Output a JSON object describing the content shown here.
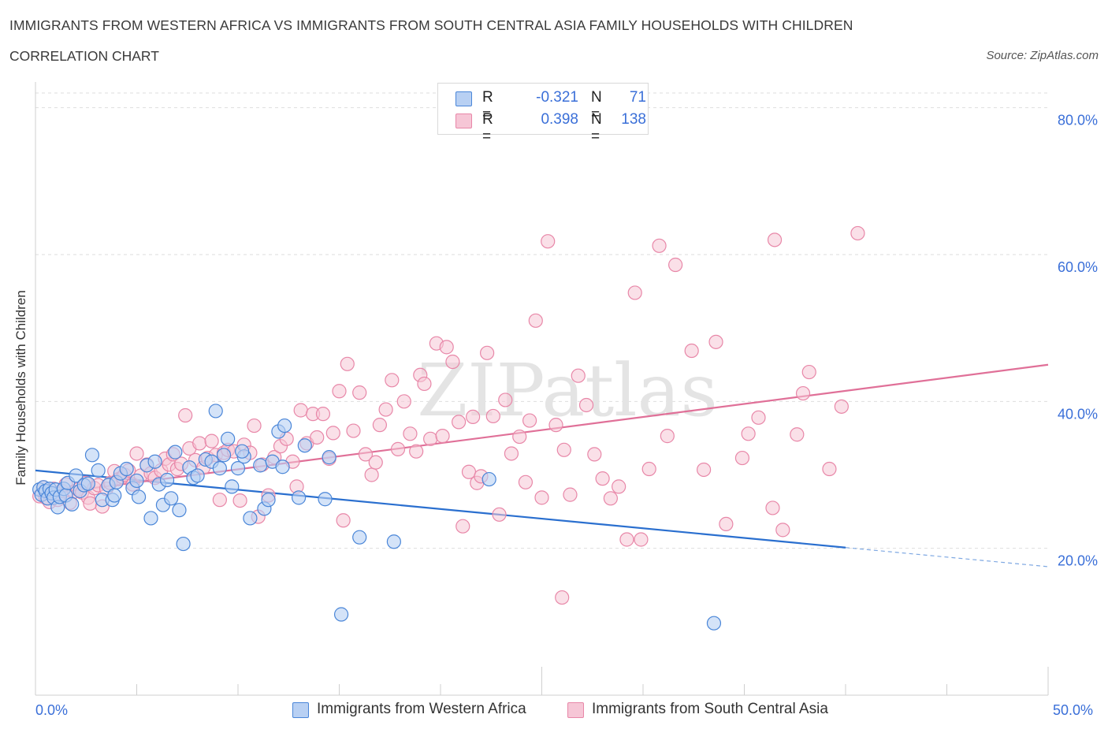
{
  "title": "IMMIGRANTS FROM WESTERN AFRICA VS IMMIGRANTS FROM SOUTH CENTRAL ASIA FAMILY HOUSEHOLDS WITH CHILDREN",
  "subtitle": "CORRELATION CHART",
  "source": "Source: ZipAtlas.com",
  "watermark": "ZIPatlas",
  "colors": {
    "blue": "#4a86d8",
    "blue_fill": "#b8d0f3",
    "blue_line": "#2a6fcf",
    "pink": "#e887a8",
    "pink_fill": "#f6c6d6",
    "pink_line": "#e07098",
    "axis_label": "#3a6fd8",
    "grid": "#dedede"
  },
  "legend": {
    "rows": [
      {
        "r_label": "R =",
        "r_value": "-0.321",
        "n_label": "N =",
        "n_value": "71",
        "color": "blue"
      },
      {
        "r_label": "R =",
        "r_value": "0.398",
        "n_label": "N =",
        "n_value": "138",
        "color": "pink"
      }
    ]
  },
  "chart_data": {
    "type": "scatter",
    "title": "IMMIGRANTS FROM WESTERN AFRICA VS IMMIGRANTS FROM SOUTH CENTRAL ASIA FAMILY HOUSEHOLDS WITH CHILDREN",
    "subtitle": "CORRELATION CHART",
    "xlabel": "",
    "ylabel": "Family Households with Children",
    "xlim": [
      0,
      50
    ],
    "ylim": [
      0,
      80
    ],
    "x_tick_labels": [
      "0.0%",
      "50.0%"
    ],
    "y_tick_labels": [
      "80.0%",
      "60.0%",
      "40.0%",
      "20.0%"
    ],
    "y_ticks": [
      80,
      60,
      40,
      20
    ],
    "grid": true,
    "legend_position": "top-center",
    "series": [
      {
        "name": "Immigrants from Western Africa",
        "color": "blue",
        "R": -0.321,
        "N": 71,
        "trend": {
          "x0": 0,
          "y0": 30.6,
          "x1": 40,
          "y1": 20.1,
          "dashed_to_x": 50,
          "dashed_to_y": 17.5
        },
        "points": [
          [
            0.2,
            28.0
          ],
          [
            0.3,
            27.3
          ],
          [
            0.4,
            28.3
          ],
          [
            0.5,
            27.8
          ],
          [
            0.6,
            26.8
          ],
          [
            0.7,
            28.1
          ],
          [
            0.8,
            27.5
          ],
          [
            0.9,
            26.9
          ],
          [
            1.0,
            28.0
          ],
          [
            1.1,
            25.6
          ],
          [
            1.2,
            27.0
          ],
          [
            1.4,
            28.1
          ],
          [
            1.5,
            27.2
          ],
          [
            1.6,
            28.9
          ],
          [
            1.8,
            26.0
          ],
          [
            2.0,
            29.9
          ],
          [
            2.2,
            27.8
          ],
          [
            2.4,
            28.6
          ],
          [
            2.6,
            28.8
          ],
          [
            2.8,
            32.7
          ],
          [
            3.1,
            30.6
          ],
          [
            3.3,
            26.6
          ],
          [
            3.6,
            28.6
          ],
          [
            3.8,
            26.6
          ],
          [
            3.9,
            27.2
          ],
          [
            4.0,
            29.0
          ],
          [
            4.2,
            30.2
          ],
          [
            4.5,
            30.8
          ],
          [
            4.8,
            28.2
          ],
          [
            5.0,
            29.2
          ],
          [
            5.1,
            27.0
          ],
          [
            5.5,
            31.3
          ],
          [
            5.7,
            24.1
          ],
          [
            5.9,
            31.8
          ],
          [
            6.1,
            28.7
          ],
          [
            6.3,
            25.9
          ],
          [
            6.5,
            29.3
          ],
          [
            6.7,
            26.8
          ],
          [
            6.9,
            33.1
          ],
          [
            7.1,
            25.2
          ],
          [
            7.3,
            20.6
          ],
          [
            7.6,
            31.0
          ],
          [
            7.8,
            29.6
          ],
          [
            8.0,
            29.9
          ],
          [
            8.4,
            32.1
          ],
          [
            8.7,
            31.8
          ],
          [
            8.9,
            38.7
          ],
          [
            9.1,
            30.9
          ],
          [
            9.3,
            32.7
          ],
          [
            9.5,
            34.9
          ],
          [
            9.7,
            28.4
          ],
          [
            10.0,
            30.9
          ],
          [
            10.3,
            32.5
          ],
          [
            10.2,
            33.2
          ],
          [
            10.6,
            24.1
          ],
          [
            11.1,
            31.3
          ],
          [
            11.3,
            25.4
          ],
          [
            11.5,
            26.6
          ],
          [
            11.7,
            31.8
          ],
          [
            12.0,
            35.9
          ],
          [
            12.3,
            36.7
          ],
          [
            12.2,
            31.1
          ],
          [
            13.0,
            26.9
          ],
          [
            13.3,
            34.0
          ],
          [
            14.3,
            26.7
          ],
          [
            14.5,
            32.4
          ],
          [
            15.1,
            11.0
          ],
          [
            16.0,
            21.5
          ],
          [
            17.7,
            20.9
          ],
          [
            22.4,
            29.4
          ],
          [
            33.5,
            9.8
          ]
        ]
      },
      {
        "name": "Immigrants from South Central Asia",
        "color": "pink",
        "R": 0.398,
        "N": 138,
        "trend": {
          "x0": 0,
          "y0": 27.2,
          "x1": 50,
          "y1": 45.0
        },
        "points": [
          [
            0.2,
            27.1
          ],
          [
            0.4,
            28.3
          ],
          [
            0.5,
            26.9
          ],
          [
            0.6,
            27.8
          ],
          [
            0.7,
            26.3
          ],
          [
            0.9,
            28.1
          ],
          [
            1.0,
            27.5
          ],
          [
            1.1,
            26.6
          ],
          [
            1.3,
            27.8
          ],
          [
            1.5,
            28.7
          ],
          [
            1.7,
            26.2
          ],
          [
            1.9,
            27.7
          ],
          [
            2.1,
            28.0
          ],
          [
            2.3,
            27.6
          ],
          [
            2.5,
            28.9
          ],
          [
            2.6,
            26.9
          ],
          [
            2.7,
            26.1
          ],
          [
            2.9,
            28.2
          ],
          [
            3.1,
            28.6
          ],
          [
            3.3,
            25.7
          ],
          [
            3.5,
            28.1
          ],
          [
            3.7,
            28.9
          ],
          [
            3.9,
            30.5
          ],
          [
            4.1,
            29.4
          ],
          [
            4.3,
            29.7
          ],
          [
            4.4,
            30.0
          ],
          [
            4.6,
            30.6
          ],
          [
            4.8,
            28.7
          ],
          [
            5.0,
            32.9
          ],
          [
            5.2,
            29.9
          ],
          [
            5.5,
            31.4
          ],
          [
            5.7,
            30.2
          ],
          [
            5.9,
            29.6
          ],
          [
            6.2,
            30.6
          ],
          [
            6.4,
            32.2
          ],
          [
            6.6,
            31.4
          ],
          [
            6.8,
            32.8
          ],
          [
            7.0,
            30.8
          ],
          [
            7.2,
            31.5
          ],
          [
            7.4,
            38.1
          ],
          [
            7.6,
            33.6
          ],
          [
            7.9,
            32.0
          ],
          [
            8.1,
            34.3
          ],
          [
            8.3,
            31.0
          ],
          [
            8.5,
            32.3
          ],
          [
            8.7,
            34.6
          ],
          [
            8.9,
            32.7
          ],
          [
            9.1,
            26.6
          ],
          [
            9.3,
            33.0
          ],
          [
            9.5,
            33.4
          ],
          [
            9.8,
            33.2
          ],
          [
            10.1,
            26.5
          ],
          [
            10.3,
            34.1
          ],
          [
            10.6,
            33.0
          ],
          [
            10.8,
            36.7
          ],
          [
            11.0,
            24.3
          ],
          [
            11.2,
            31.4
          ],
          [
            11.5,
            27.2
          ],
          [
            11.8,
            32.4
          ],
          [
            12.1,
            33.9
          ],
          [
            12.4,
            34.9
          ],
          [
            12.7,
            31.8
          ],
          [
            12.9,
            28.4
          ],
          [
            13.1,
            38.8
          ],
          [
            13.4,
            34.3
          ],
          [
            13.7,
            38.3
          ],
          [
            13.9,
            35.1
          ],
          [
            14.2,
            38.3
          ],
          [
            14.5,
            32.2
          ],
          [
            14.7,
            35.7
          ],
          [
            15.0,
            41.4
          ],
          [
            15.2,
            23.8
          ],
          [
            15.4,
            45.1
          ],
          [
            15.7,
            36.0
          ],
          [
            16.0,
            41.2
          ],
          [
            16.3,
            32.8
          ],
          [
            16.6,
            30.0
          ],
          [
            16.8,
            31.7
          ],
          [
            17.0,
            36.8
          ],
          [
            17.3,
            38.9
          ],
          [
            17.6,
            42.9
          ],
          [
            17.9,
            33.5
          ],
          [
            18.2,
            40.0
          ],
          [
            18.5,
            35.6
          ],
          [
            18.8,
            33.2
          ],
          [
            19.0,
            43.6
          ],
          [
            19.2,
            42.4
          ],
          [
            19.5,
            34.9
          ],
          [
            19.8,
            47.9
          ],
          [
            20.1,
            35.3
          ],
          [
            20.3,
            47.4
          ],
          [
            20.6,
            45.4
          ],
          [
            20.9,
            37.2
          ],
          [
            21.1,
            23.0
          ],
          [
            21.4,
            30.4
          ],
          [
            21.6,
            37.9
          ],
          [
            21.8,
            28.9
          ],
          [
            22.0,
            29.8
          ],
          [
            22.3,
            46.6
          ],
          [
            22.6,
            38.0
          ],
          [
            22.9,
            24.6
          ],
          [
            23.2,
            40.2
          ],
          [
            23.5,
            32.9
          ],
          [
            23.9,
            35.2
          ],
          [
            24.2,
            29.0
          ],
          [
            24.7,
            51.0
          ],
          [
            25.0,
            26.9
          ],
          [
            25.3,
            61.8
          ],
          [
            25.7,
            36.8
          ],
          [
            26.1,
            33.4
          ],
          [
            26.4,
            27.3
          ],
          [
            26.8,
            43.5
          ],
          [
            27.2,
            39.5
          ],
          [
            27.6,
            32.8
          ],
          [
            28.0,
            29.5
          ],
          [
            28.4,
            26.8
          ],
          [
            28.8,
            28.4
          ],
          [
            29.2,
            21.2
          ],
          [
            29.6,
            54.8
          ],
          [
            29.9,
            21.2
          ],
          [
            30.3,
            30.8
          ],
          [
            30.8,
            61.2
          ],
          [
            31.2,
            35.3
          ],
          [
            31.6,
            58.6
          ],
          [
            32.4,
            46.9
          ],
          [
            33.0,
            30.7
          ],
          [
            33.6,
            48.1
          ],
          [
            34.1,
            23.3
          ],
          [
            34.9,
            32.3
          ],
          [
            35.2,
            35.6
          ],
          [
            35.7,
            37.8
          ],
          [
            36.4,
            25.5
          ],
          [
            36.9,
            22.5
          ],
          [
            37.6,
            35.5
          ],
          [
            37.9,
            41.1
          ],
          [
            38.2,
            44.0
          ],
          [
            39.2,
            30.8
          ],
          [
            39.8,
            39.3
          ],
          [
            40.6,
            62.9
          ],
          [
            26.0,
            13.3
          ],
          [
            36.5,
            62.0
          ],
          [
            24.4,
            37.4
          ]
        ]
      }
    ]
  },
  "bottom_legend": [
    {
      "label": "Immigrants from Western Africa",
      "color": "blue"
    },
    {
      "label": "Immigrants from South Central Asia",
      "color": "pink"
    }
  ]
}
